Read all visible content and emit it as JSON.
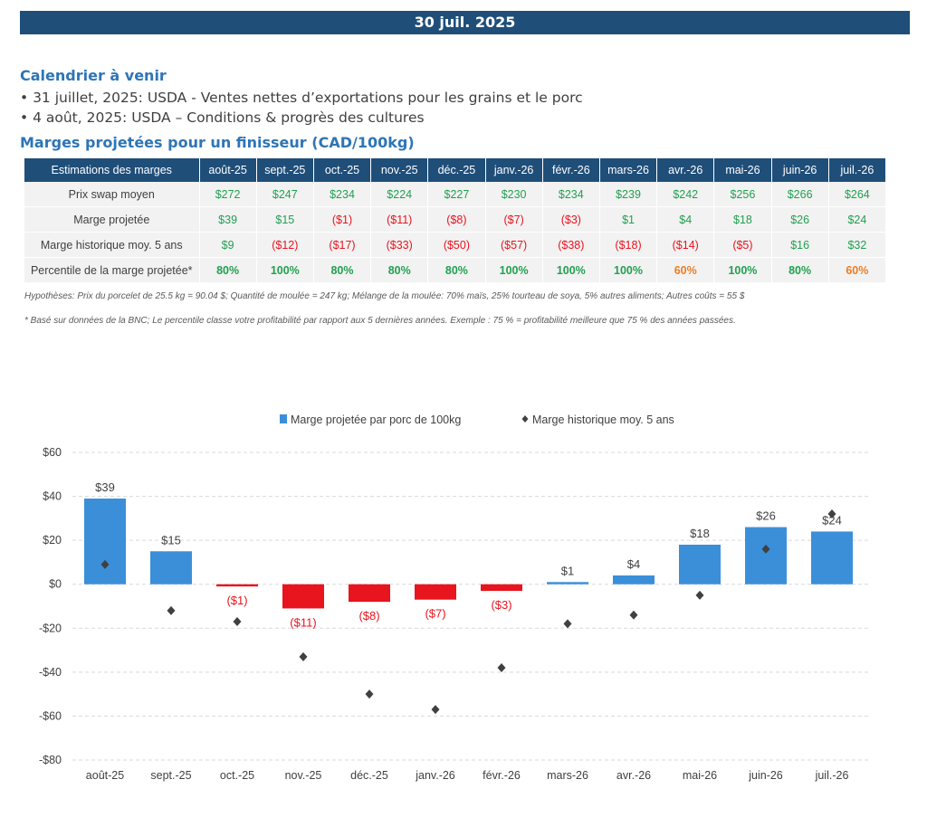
{
  "header": {
    "date": "30 juil. 2025"
  },
  "calendar": {
    "title": "Calendrier à venir",
    "events": [
      "• 31 juillet, 2025: USDA - Ventes nettes d’exportations pour les grains et le porc",
      "• 4 août, 2025: USDA – Conditions & progrès des cultures"
    ]
  },
  "margins": {
    "title": "Marges projetées pour un finisseur (CAD/100kg)",
    "header_label": "Estimations des marges",
    "months": [
      "août-25",
      "sept.-25",
      "oct.-25",
      "nov.-25",
      "déc.-25",
      "janv.-26",
      "févr.-26",
      "mars-26",
      "avr.-26",
      "mai-26",
      "juin-26",
      "juil.-26"
    ],
    "rows": [
      {
        "label": "Prix swap moyen",
        "values": [
          "$272",
          "$247",
          "$234",
          "$224",
          "$227",
          "$230",
          "$234",
          "$239",
          "$242",
          "$256",
          "$266",
          "$264"
        ]
      },
      {
        "label": "Marge projetée",
        "values": [
          "$39",
          "$15",
          "($1)",
          "($11)",
          "($8)",
          "($7)",
          "($3)",
          "$1",
          "$4",
          "$18",
          "$26",
          "$24"
        ]
      },
      {
        "label": "Marge historique moy. 5 ans",
        "values": [
          "$9",
          "($12)",
          "($17)",
          "($33)",
          "($50)",
          "($57)",
          "($38)",
          "($18)",
          "($14)",
          "($5)",
          "$16",
          "$32"
        ]
      },
      {
        "label": "Percentile de la marge projetée*",
        "values": [
          "80%",
          "100%",
          "80%",
          "80%",
          "80%",
          "100%",
          "100%",
          "100%",
          "60%",
          "100%",
          "80%",
          "60%"
        ]
      }
    ],
    "assumptions": "Hypothèses: Prix du porcelet de 25.5 kg = 90.04 $; Quantité de moulée = 247 kg; Mélange de la moulée: 70% maïs, 25% tourteau de soya, 5% autres aliments; Autres coûts = 55 $",
    "footnote": "* Basé sur données de la BNC; Le percentile classe votre profitabilité par rapport aux 5 dernières années. Exemple : 75 % = profitabilité meilleure que 75 % des années passées."
  },
  "colors": {
    "banner": "#1f4e79",
    "positive_bar": "#3b8fd9",
    "negative_bar": "#e8141e",
    "positive_text": "#22a050",
    "negative_text": "#e8141e",
    "mid_text": "#ed7d22",
    "marker": "#404040"
  },
  "chart_data": {
    "type": "bar",
    "categories": [
      "août-25",
      "sept.-25",
      "oct.-25",
      "nov.-25",
      "déc.-25",
      "janv.-26",
      "févr.-26",
      "mars-26",
      "avr.-26",
      "mai-26",
      "juin-26",
      "juil.-26"
    ],
    "series": [
      {
        "name": "Marge projetée par porc de 100kg",
        "type": "bar",
        "values": [
          39,
          15,
          -1,
          -11,
          -8,
          -7,
          -3,
          1,
          4,
          18,
          26,
          24
        ],
        "labels": [
          "$39",
          "$15",
          "($1)",
          "($11)",
          "($8)",
          "($7)",
          "($3)",
          "$1",
          "$4",
          "$18",
          "$26",
          "$24"
        ]
      },
      {
        "name": "Marge historique moy. 5 ans",
        "type": "scatter",
        "values": [
          9,
          -12,
          -17,
          -33,
          -50,
          -57,
          -38,
          -18,
          -14,
          -5,
          16,
          32
        ]
      }
    ],
    "ylim": [
      -80,
      60
    ],
    "yticks": [
      60,
      40,
      20,
      0,
      -20,
      -40,
      -60,
      -80
    ],
    "ytick_labels": [
      "$60",
      "$40",
      "$20",
      "$0",
      "-$20",
      "-$40",
      "-$60",
      "-$80"
    ],
    "grid": true,
    "legend": "top-center"
  }
}
